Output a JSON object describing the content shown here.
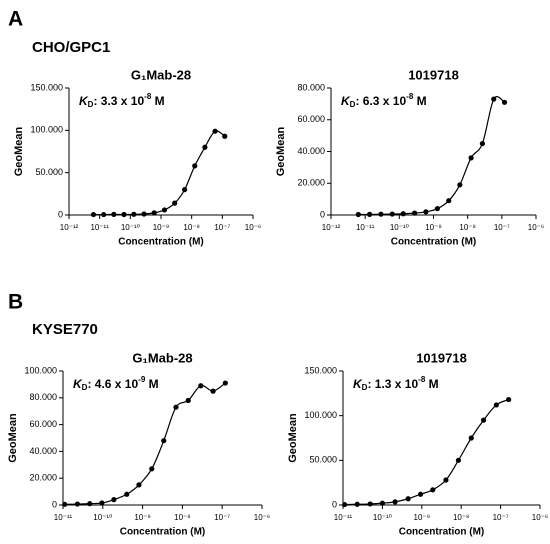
{
  "panels": [
    {
      "letter": "A",
      "cell_line": "CHO/GPC1"
    },
    {
      "letter": "B",
      "cell_line": "KYSE770"
    }
  ],
  "chart_data": [
    {
      "type": "scatter",
      "title": "G₁Mab-28",
      "xlabel": "Concentration (M)",
      "ylabel": "GeoMean",
      "xscale": "log",
      "color": "#000000",
      "annotation": {
        "k": "K",
        "sub": "D",
        "mantissa": ": 3.3 x 10",
        "exp": "-8",
        "unit": " M"
      },
      "x": [
        6.3e-12,
        1.35e-11,
        2.9e-11,
        6.2e-11,
        1.3e-10,
        2.8e-10,
        6e-10,
        1.3e-09,
        2.8e-09,
        5.9e-09,
        1.26e-08,
        2.7e-08,
        5.8e-08,
        1.2e-07
      ],
      "values": [
        500,
        500,
        700,
        600,
        800,
        1200,
        2500,
        6000,
        14000,
        30000,
        58000,
        80000,
        99000,
        93000
      ],
      "xlim": [
        1e-12,
        1e-06
      ],
      "xticks": [
        {
          "value": 1e-12,
          "label": "10⁻¹²"
        },
        {
          "value": 1e-11,
          "label": "10⁻¹¹"
        },
        {
          "value": 1e-10,
          "label": "10⁻¹⁰"
        },
        {
          "value": 1e-09,
          "label": "10⁻⁹"
        },
        {
          "value": 1e-08,
          "label": "10⁻⁸"
        },
        {
          "value": 1e-07,
          "label": "10⁻⁷"
        },
        {
          "value": 1e-06,
          "label": "10⁻⁶"
        }
      ],
      "ylim": [
        0,
        150000
      ],
      "yticks": [
        0,
        {
          "value": 50000,
          "label": "50.000"
        },
        {
          "value": 100000,
          "label": "100.000"
        },
        {
          "value": 150000,
          "label": "150.000"
        }
      ]
    },
    {
      "type": "scatter",
      "title": "1019718",
      "xlabel": "Concentration (M)",
      "ylabel": "GeoMean",
      "xscale": "log",
      "color": "#000000",
      "annotation": {
        "k": "K",
        "sub": "D",
        "mantissa": ": 6.3 x 10",
        "exp": "-8",
        "unit": " M"
      },
      "x": [
        6.3e-12,
        1.35e-11,
        2.9e-11,
        6.2e-11,
        1.3e-10,
        2.8e-10,
        6e-10,
        1.3e-09,
        2.8e-09,
        5.9e-09,
        1.26e-08,
        2.7e-08,
        5.8e-08,
        1.2e-07
      ],
      "values": [
        300,
        400,
        500,
        600,
        800,
        1200,
        2000,
        4000,
        9000,
        19000,
        36000,
        45000,
        73000,
        71000
      ],
      "xlim": [
        1e-12,
        1e-06
      ],
      "xticks": [
        {
          "value": 1e-12,
          "label": "10⁻¹²"
        },
        {
          "value": 1e-11,
          "label": "10⁻¹¹"
        },
        {
          "value": 1e-10,
          "label": "10⁻¹⁰"
        },
        {
          "value": 1e-09,
          "label": "10⁻⁹"
        },
        {
          "value": 1e-08,
          "label": "10⁻⁸"
        },
        {
          "value": 1e-07,
          "label": "10⁻⁷"
        },
        {
          "value": 1e-06,
          "label": "10⁻⁶"
        }
      ],
      "ylim": [
        0,
        80000
      ],
      "yticks": [
        0,
        {
          "value": 20000,
          "label": "20.000"
        },
        {
          "value": 40000,
          "label": "40.000"
        },
        {
          "value": 60000,
          "label": "60.000"
        },
        {
          "value": 80000,
          "label": "80.000"
        }
      ]
    },
    {
      "type": "scatter",
      "title": "G₁Mab-28",
      "xlabel": "Concentration (M)",
      "ylabel": "GeoMean",
      "xscale": "log",
      "color": "#000000",
      "annotation": {
        "k": "K",
        "sub": "D",
        "mantissa": ": 4.6 x 10",
        "exp": "-9",
        "unit": " M"
      },
      "x": [
        1.1e-11,
        2.3e-11,
        4.7e-11,
        9.5e-11,
        1.9e-10,
        4e-10,
        8.1e-10,
        1.7e-09,
        3.4e-09,
        6.9e-09,
        1.4e-08,
        2.9e-08,
        5.9e-08,
        1.2e-07
      ],
      "values": [
        500,
        700,
        1000,
        1500,
        4000,
        8000,
        15000,
        27000,
        48000,
        73000,
        78000,
        89000,
        85000,
        91000
      ],
      "xlim": [
        1e-11,
        1e-06
      ],
      "xticks": [
        {
          "value": 1e-11,
          "label": "10⁻¹¹"
        },
        {
          "value": 1e-10,
          "label": "10⁻¹⁰"
        },
        {
          "value": 1e-09,
          "label": "10⁻⁹"
        },
        {
          "value": 1e-08,
          "label": "10⁻⁸"
        },
        {
          "value": 1e-07,
          "label": "10⁻⁷"
        },
        {
          "value": 1e-06,
          "label": "10⁻⁶"
        }
      ],
      "ylim": [
        0,
        100000
      ],
      "yticks": [
        0,
        {
          "value": 20000,
          "label": "20.000"
        },
        {
          "value": 40000,
          "label": "40.000"
        },
        {
          "value": 60000,
          "label": "60.000"
        },
        {
          "value": 80000,
          "label": "80.000"
        },
        {
          "value": 100000,
          "label": "100.000"
        }
      ]
    },
    {
      "type": "scatter",
      "title": "1019718",
      "xlabel": "Concentration (M)",
      "ylabel": "GeoMean",
      "xscale": "log",
      "color": "#000000",
      "annotation": {
        "k": "K",
        "sub": "D",
        "mantissa": ": 1.3 x 10",
        "exp": "-8",
        "unit": " M"
      },
      "x": [
        1.1e-11,
        2.3e-11,
        4.9e-11,
        1e-10,
        2.1e-10,
        4.5e-10,
        9.3e-10,
        1.9e-09,
        4.1e-09,
        8.5e-09,
        1.8e-08,
        3.7e-08,
        7.8e-08,
        1.6e-07
      ],
      "values": [
        500,
        800,
        1200,
        2000,
        3500,
        7000,
        12000,
        17000,
        28000,
        50000,
        75000,
        95000,
        112000,
        118000
      ],
      "xlim": [
        1e-11,
        1e-06
      ],
      "xticks": [
        {
          "value": 1e-11,
          "label": "10⁻¹¹"
        },
        {
          "value": 1e-10,
          "label": "10⁻¹⁰"
        },
        {
          "value": 1e-09,
          "label": "10⁻⁹"
        },
        {
          "value": 1e-08,
          "label": "10⁻⁸"
        },
        {
          "value": 1e-07,
          "label": "10⁻⁷"
        },
        {
          "value": 1e-06,
          "label": "10⁻⁶"
        }
      ],
      "ylim": [
        0,
        150000
      ],
      "yticks": [
        0,
        {
          "value": 50000,
          "label": "50.000"
        },
        {
          "value": 100000,
          "label": "100.000"
        },
        {
          "value": 150000,
          "label": "150.000"
        }
      ]
    }
  ]
}
